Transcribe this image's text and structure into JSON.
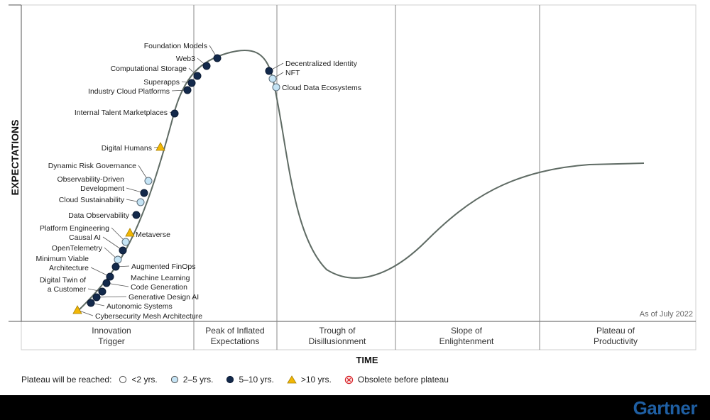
{
  "chart_data": {
    "type": "hype-cycle",
    "xlabel": "TIME",
    "ylabel": "EXPECTATIONS",
    "as_of": "As of July 2022",
    "phases": [
      [
        "Innovation",
        "Trigger"
      ],
      [
        "Peak of Inflated",
        "Expectations"
      ],
      [
        "Trough of",
        "Disillusionment"
      ],
      [
        "Slope of",
        "Enlightenment"
      ],
      [
        "Plateau of",
        "Productivity"
      ]
    ],
    "categories": {
      "lt2": {
        "label": "<2 yrs.",
        "shape": "circle",
        "color": "#ffffff"
      },
      "2to5": {
        "label": "2–5 yrs.",
        "shape": "circle",
        "color": "#c5e4f5"
      },
      "5to10": {
        "label": "5–10 yrs.",
        "shape": "circle",
        "color": "#13294b"
      },
      "gt10": {
        "label": ">10 yrs.",
        "shape": "triangle",
        "color": "#f2b705"
      },
      "obsolete": {
        "label": "Obsolete before plateau",
        "shape": "x-circle",
        "color": "#d9262c"
      }
    },
    "technologies": [
      {
        "name": "Foundation Models",
        "cat": "5to10"
      },
      {
        "name": "Web3",
        "cat": "5to10"
      },
      {
        "name": "Computational Storage",
        "cat": "5to10"
      },
      {
        "name": "Superapps",
        "cat": "5to10"
      },
      {
        "name": "Industry Cloud Platforms",
        "cat": "5to10"
      },
      {
        "name": "Internal Talent Marketplaces",
        "cat": "5to10"
      },
      {
        "name": "Digital Humans",
        "cat": "gt10"
      },
      {
        "name": "Dynamic Risk Governance",
        "cat": "2to5"
      },
      {
        "name": "Observability-Driven Development",
        "cat": "5to10"
      },
      {
        "name": "Cloud Sustainability",
        "cat": "2to5"
      },
      {
        "name": "Data Observability",
        "cat": "5to10"
      },
      {
        "name": "Metaverse",
        "cat": "gt10"
      },
      {
        "name": "Platform Engineering",
        "cat": "2to5"
      },
      {
        "name": "Causal AI",
        "cat": "5to10"
      },
      {
        "name": "OpenTelemetry",
        "cat": "2to5"
      },
      {
        "name": "Augmented FinOps",
        "cat": "5to10"
      },
      {
        "name": "Minimum Viable Architecture",
        "cat": "5to10"
      },
      {
        "name": "Machine Learning Code Generation",
        "cat": "5to10"
      },
      {
        "name": "Digital Twin of a Customer",
        "cat": "5to10"
      },
      {
        "name": "Generative Design AI",
        "cat": "5to10"
      },
      {
        "name": "Autonomic Systems",
        "cat": "5to10"
      },
      {
        "name": "Cybersecurity Mesh Architecture",
        "cat": "gt10"
      },
      {
        "name": "Decentralized Identity",
        "cat": "5to10"
      },
      {
        "name": "NFT",
        "cat": "2to5"
      },
      {
        "name": "Cloud Data Ecosystems",
        "cat": "2to5"
      }
    ]
  },
  "legend": {
    "title": "Plateau will be reached:"
  },
  "brand": "Gartner"
}
